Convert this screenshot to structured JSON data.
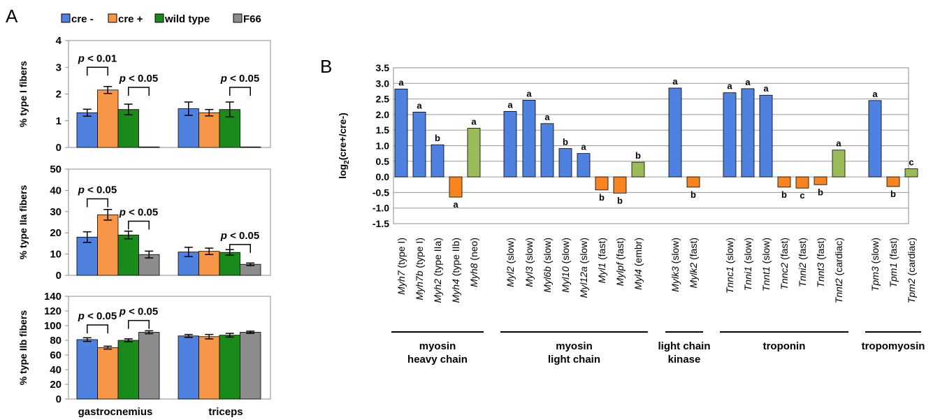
{
  "panel_a_label": "A",
  "panel_b_label": "B",
  "legend": [
    {
      "label": "cre -",
      "color": "#4f81e0"
    },
    {
      "label": "cre +",
      "color": "#f79646"
    },
    {
      "label": "wild type",
      "color": "#1a8a1a"
    },
    {
      "label": "F66",
      "color": "#8c8c8c"
    }
  ],
  "chart_data": [
    {
      "type": "bar",
      "panel": "A",
      "ylabel": "% type I fibers",
      "ylim": [
        0,
        4
      ],
      "yticks": [
        "0",
        "1",
        "2",
        "3",
        "4"
      ],
      "categories": [
        "gastrocnemius",
        "triceps"
      ],
      "series": [
        {
          "name": "cre -",
          "values": [
            1.3,
            1.45
          ],
          "errors": [
            0.13,
            0.25
          ]
        },
        {
          "name": "cre +",
          "values": [
            2.15,
            1.3
          ],
          "errors": [
            0.13,
            0.12
          ]
        },
        {
          "name": "wild type",
          "values": [
            1.42,
            1.42
          ],
          "errors": [
            0.2,
            0.28
          ]
        },
        {
          "name": "F66",
          "values": [
            0.02,
            0.02
          ],
          "errors": [
            0,
            0
          ]
        }
      ],
      "annotations": [
        {
          "text": "p < 0.01",
          "from": [
            0,
            0
          ],
          "to": [
            0,
            1
          ],
          "bracket_y": 3.0
        },
        {
          "text": "p < 0.05",
          "from": [
            0,
            2
          ],
          "to": [
            0,
            3
          ],
          "bracket_y": 2.25
        },
        {
          "text": "p < 0.05",
          "from": [
            1,
            2
          ],
          "to": [
            1,
            3
          ],
          "bracket_y": 2.25
        }
      ]
    },
    {
      "type": "bar",
      "panel": "A",
      "ylabel": "% type IIa fibers",
      "ylim": [
        0,
        50
      ],
      "yticks": [
        "0",
        "10",
        "20",
        "30",
        "40",
        "50"
      ],
      "categories": [
        "gastrocnemius",
        "triceps"
      ],
      "series": [
        {
          "name": "cre -",
          "values": [
            18,
            11
          ],
          "errors": [
            2.5,
            2.2
          ]
        },
        {
          "name": "cre +",
          "values": [
            28.5,
            11.3
          ],
          "errors": [
            2.5,
            1.5
          ]
        },
        {
          "name": "wild type",
          "values": [
            19,
            10.8
          ],
          "errors": [
            1.8,
            1.3
          ]
        },
        {
          "name": "F66",
          "values": [
            9.8,
            5.2
          ],
          "errors": [
            1.6,
            0.6
          ]
        }
      ],
      "annotations": [
        {
          "text": "p < 0.05",
          "from": [
            0,
            0
          ],
          "to": [
            0,
            1
          ],
          "bracket_y": 36
        },
        {
          "text": "p < 0.05",
          "from": [
            0,
            2
          ],
          "to": [
            0,
            3
          ],
          "bracket_y": 25.5
        },
        {
          "text": "p < 0.05",
          "from": [
            1,
            2
          ],
          "to": [
            1,
            3
          ],
          "bracket_y": 14.5
        }
      ]
    },
    {
      "type": "bar",
      "panel": "A",
      "ylabel": "% type IIb fibers",
      "ylim": [
        0,
        140
      ],
      "yticks": [
        "0",
        "20",
        "40",
        "60",
        "80",
        "100",
        "120",
        "140"
      ],
      "categories": [
        "gastrocnemius",
        "triceps"
      ],
      "series": [
        {
          "name": "cre -",
          "values": [
            81,
            86
          ],
          "errors": [
            2.5,
            2
          ]
        },
        {
          "name": "cre +",
          "values": [
            70,
            85
          ],
          "errors": [
            2,
            3
          ]
        },
        {
          "name": "wild type",
          "values": [
            80,
            87
          ],
          "errors": [
            2,
            2.5
          ]
        },
        {
          "name": "F66",
          "values": [
            91,
            91
          ],
          "errors": [
            2,
            1.5
          ]
        }
      ],
      "annotations": [
        {
          "text": "p < 0.05",
          "from": [
            0,
            0
          ],
          "to": [
            0,
            1
          ],
          "bracket_y": 101
        },
        {
          "text": "p < 0.05",
          "from": [
            0,
            2
          ],
          "to": [
            0,
            3
          ],
          "bracket_y": 107
        }
      ]
    },
    {
      "type": "bar",
      "panel": "B",
      "ylabel": "log2(cre+/cre-)",
      "ylim": [
        -1.5,
        3.5
      ],
      "yticks": [
        "3.5",
        "3.0",
        "2.5",
        "2.0",
        "1.5",
        "1.0",
        "0.5",
        "0.0",
        "-0.5",
        "-1.0",
        "-1.5"
      ],
      "bars": [
        {
          "gene": "Myh7",
          "desc": "(type I)",
          "value": 2.82,
          "letter": "a",
          "color": "#4f81e0"
        },
        {
          "gene": "Myh7b",
          "desc": "(type I)",
          "value": 2.08,
          "letter": "a",
          "color": "#4f81e0"
        },
        {
          "gene": "Myh2",
          "desc": "(type IIa)",
          "value": 1.03,
          "letter": "b",
          "color": "#4f81e0"
        },
        {
          "gene": "Myh4",
          "desc": "(type IIb)",
          "value": -0.65,
          "letter": "a",
          "color": "#f7841f"
        },
        {
          "gene": "Myh8",
          "desc": "(neo)",
          "value": 1.56,
          "letter": "a",
          "color": "#9bbb59"
        },
        {
          "gene": "Myl2",
          "desc": "(slow)",
          "value": 2.1,
          "letter": "a",
          "color": "#4f81e0"
        },
        {
          "gene": "Myl3",
          "desc": "(slow)",
          "value": 2.46,
          "letter": "a",
          "color": "#4f81e0"
        },
        {
          "gene": "Myl6b",
          "desc": "(slow)",
          "value": 1.71,
          "letter": "a",
          "color": "#4f81e0"
        },
        {
          "gene": "Myl10",
          "desc": "(slow)",
          "value": 0.91,
          "letter": "b",
          "color": "#4f81e0"
        },
        {
          "gene": "Myl12a",
          "desc": "(slow)",
          "value": 0.75,
          "letter": "a",
          "color": "#4f81e0"
        },
        {
          "gene": "Myl1",
          "desc": "(fast)",
          "value": -0.42,
          "letter": "b",
          "color": "#f7841f"
        },
        {
          "gene": "Mylpf",
          "desc": "(fast)",
          "value": -0.52,
          "letter": "b",
          "color": "#f7841f"
        },
        {
          "gene": "Myl4",
          "desc": "(embr)",
          "value": 0.47,
          "letter": "b",
          "color": "#9bbb59"
        },
        {
          "gene": "Mylk3",
          "desc": "(slow)",
          "value": 2.85,
          "letter": "a",
          "color": "#4f81e0"
        },
        {
          "gene": "Mylk2",
          "desc": "(fast)",
          "value": -0.33,
          "letter": "b",
          "color": "#f7841f"
        },
        {
          "gene": "Tnnc1",
          "desc": "(slow)",
          "value": 2.7,
          "letter": "a",
          "color": "#4f81e0"
        },
        {
          "gene": "Tnni1",
          "desc": "(slow)",
          "value": 2.83,
          "letter": "a",
          "color": "#4f81e0"
        },
        {
          "gene": "Tnnt1",
          "desc": "(slow)",
          "value": 2.62,
          "letter": "a",
          "color": "#4f81e0"
        },
        {
          "gene": "Tnnc2",
          "desc": "(fast)",
          "value": -0.33,
          "letter": "b",
          "color": "#f7841f"
        },
        {
          "gene": "Tnni2",
          "desc": "(fast)",
          "value": -0.36,
          "letter": "c",
          "color": "#f7841f"
        },
        {
          "gene": "Tnnt3",
          "desc": "(fast)",
          "value": -0.25,
          "letter": "b",
          "color": "#f7841f"
        },
        {
          "gene": "Tnnt2",
          "desc": "(cardiac)",
          "value": 0.86,
          "letter": "a",
          "color": "#9bbb59"
        },
        {
          "gene": "Tpm3",
          "desc": "(slow)",
          "value": 2.45,
          "letter": "a",
          "color": "#4f81e0"
        },
        {
          "gene": "Tpm1",
          "desc": "(fast)",
          "value": -0.31,
          "letter": "b",
          "color": "#f7841f"
        },
        {
          "gene": "Tpm2",
          "desc": "(cardiac)",
          "value": 0.26,
          "letter": "c",
          "color": "#9bbb59"
        }
      ],
      "groups": [
        {
          "lines": [
            "myosin",
            "heavy chain"
          ],
          "first": 0,
          "last": 4
        },
        {
          "lines": [
            "myosin",
            "light chain"
          ],
          "first": 5,
          "last": 12
        },
        {
          "lines": [
            "light chain",
            "kinase"
          ],
          "first": 13,
          "last": 14
        },
        {
          "lines": [
            "troponin"
          ],
          "first": 15,
          "last": 21
        },
        {
          "lines": [
            "tropomyosin"
          ],
          "first": 22,
          "last": 24
        }
      ]
    }
  ]
}
